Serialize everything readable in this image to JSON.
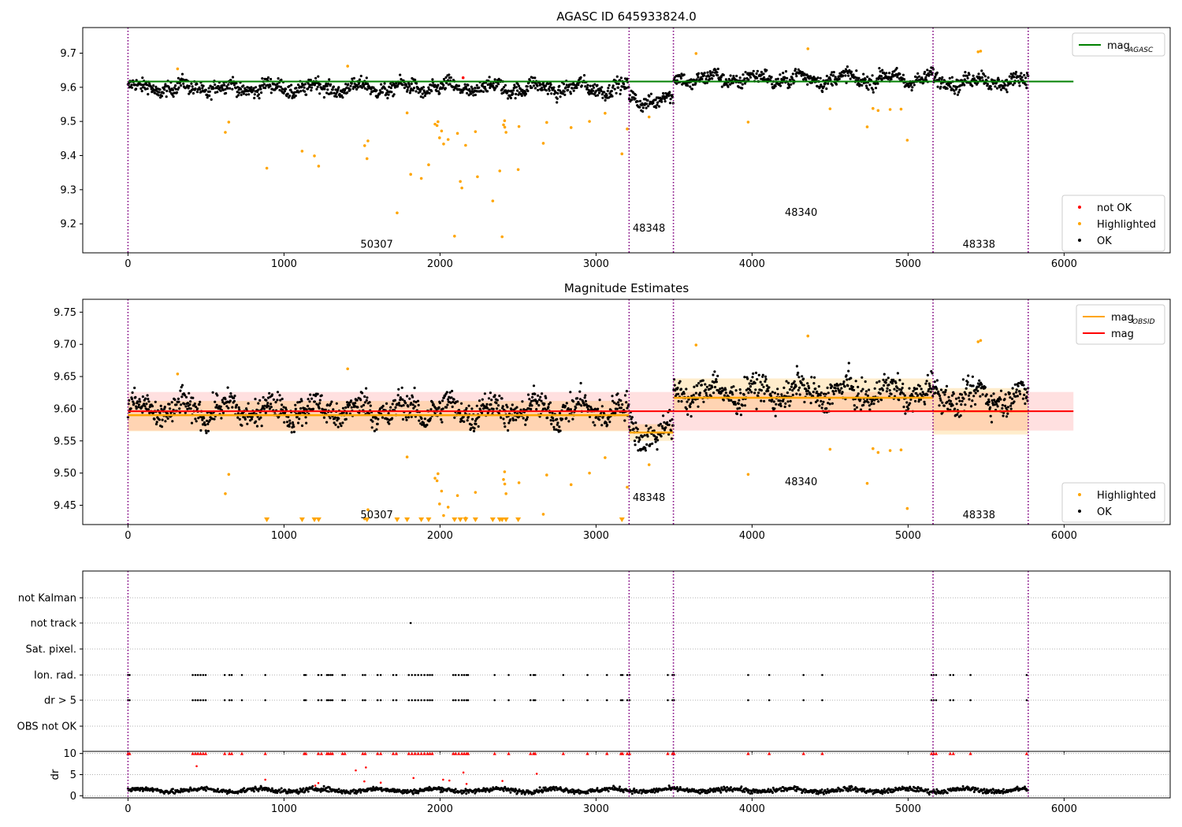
{
  "chart_data": [
    {
      "type": "scatter",
      "title": "AGASC ID 645933824.0",
      "xlim": [
        -290,
        6680
      ],
      "ylim": [
        9.115,
        9.775
      ],
      "x_ticks": [
        0,
        1000,
        2000,
        3000,
        4000,
        5000,
        6000
      ],
      "x_tick_labels": [
        "0",
        "1000",
        "2000",
        "3000",
        "4000",
        "5000",
        "6000"
      ],
      "y_ticks": [
        9.2,
        9.3,
        9.4,
        9.5,
        9.6,
        9.7
      ],
      "y_tick_labels": [
        "9.2",
        "9.3",
        "9.4",
        "9.5",
        "9.6",
        "9.7"
      ],
      "grid": false,
      "obs_boundaries": [
        0,
        3212,
        3496,
        5160,
        5770
      ],
      "obsid_labels": [
        {
          "text": "50307",
          "x": 1490,
          "y": 9.13
        },
        {
          "text": "48348",
          "x": 3235,
          "y": 9.177
        },
        {
          "text": "48340",
          "x": 4210,
          "y": 9.223
        },
        {
          "text": "48338",
          "x": 5350,
          "y": 9.13
        }
      ],
      "mag_agasc": 9.617,
      "mag_agasc_xrange": [
        0,
        6060
      ],
      "legend_top": {
        "position": "upper right",
        "entries": [
          {
            "label": "mag",
            "sub": "AGASC",
            "color": "#008000",
            "kind": "line"
          }
        ]
      },
      "legend_bottom": {
        "position": "lower right",
        "entries": [
          {
            "label": "not OK",
            "color": "#ff0000",
            "kind": "dot"
          },
          {
            "label": "Highlighted",
            "color": "#ffa500",
            "kind": "dot"
          },
          {
            "label": "OK",
            "color": "#000000",
            "kind": "dot"
          }
        ]
      },
      "series": [
        {
          "name": "OK",
          "color": "#000000",
          "obs_means": [
            9.598,
            9.563,
            9.625,
            9.618,
            9.6
          ],
          "spread": 0.025
        },
        {
          "name": "Highlighted",
          "color": "#ffa500",
          "x": [
            318,
            624,
            646,
            890,
            1116,
            1195,
            1222,
            1408,
            1517,
            1532,
            1538,
            1725,
            1789,
            1812,
            1880,
            1927,
            1968,
            1981,
            1987,
            1997,
            2010,
            2023,
            2052,
            2093,
            2112,
            2130,
            2140,
            2164,
            2227,
            2240,
            2338,
            2383,
            2398,
            2407,
            2414,
            2415,
            2423,
            2501,
            2506,
            2662,
            2684,
            2840,
            2958,
            3058,
            3166,
            3200,
            3340,
            3641,
            3975,
            4358,
            4500,
            4738,
            4775,
            4808,
            4885,
            4955,
            4995,
            5449,
            5465
          ],
          "y": [
            9.654,
            9.468,
            9.498,
            9.363,
            9.413,
            9.399,
            9.369,
            9.662,
            9.429,
            9.391,
            9.443,
            9.232,
            9.525,
            9.345,
            9.333,
            9.373,
            9.492,
            9.488,
            9.499,
            9.452,
            9.472,
            9.434,
            9.447,
            9.164,
            9.465,
            9.324,
            9.305,
            9.43,
            9.47,
            9.338,
            9.267,
            9.355,
            9.162,
            9.49,
            9.502,
            9.483,
            9.468,
            9.359,
            9.485,
            9.436,
            9.497,
            9.482,
            9.5,
            9.524,
            9.405,
            9.478,
            9.513,
            9.699,
            9.498,
            9.713,
            9.537,
            9.484,
            9.538,
            9.532,
            9.535,
            9.536,
            9.445,
            9.704,
            9.706
          ]
        },
        {
          "name": "not OK",
          "color": "#ff0000",
          "x": [
            2148
          ],
          "y": [
            9.628
          ]
        }
      ]
    },
    {
      "type": "scatter",
      "title": "Magnitude Estimates",
      "xlim": [
        -290,
        6680
      ],
      "ylim": [
        9.42,
        9.77
      ],
      "x_ticks": [
        0,
        1000,
        2000,
        3000,
        4000,
        5000,
        6000
      ],
      "x_tick_labels": [
        "0",
        "1000",
        "2000",
        "3000",
        "4000",
        "5000",
        "6000"
      ],
      "y_ticks": [
        9.45,
        9.5,
        9.55,
        9.6,
        9.65,
        9.7,
        9.75
      ],
      "y_tick_labels": [
        "9.45",
        "9.50",
        "9.55",
        "9.60",
        "9.65",
        "9.70",
        "9.75"
      ],
      "grid": false,
      "obs_boundaries": [
        0,
        3212,
        3496,
        5160,
        5770
      ],
      "obsid_labels": [
        {
          "text": "50307",
          "x": 1490,
          "y": 9.43
        },
        {
          "text": "48348",
          "x": 3235,
          "y": 9.457
        },
        {
          "text": "48340",
          "x": 4210,
          "y": 9.481
        },
        {
          "text": "48338",
          "x": 5350,
          "y": 9.43
        }
      ],
      "mag": 9.596,
      "mag_band": [
        9.566,
        9.626
      ],
      "mag_xrange": [
        0,
        6060
      ],
      "mag_obsid": [
        {
          "x": [
            0,
            3212
          ],
          "value": 9.59,
          "band": [
            9.565,
            9.612
          ]
        },
        {
          "x": [
            3212,
            3496
          ],
          "value": 9.563,
          "band": [
            9.55,
            9.576
          ]
        },
        {
          "x": [
            3496,
            5160
          ],
          "value": 9.617,
          "band": [
            9.597,
            9.647
          ]
        },
        {
          "x": [
            5160,
            5770
          ],
          "value": 9.596,
          "band": [
            9.56,
            9.632
          ]
        }
      ],
      "legend_top": {
        "position": "upper right",
        "entries": [
          {
            "label": "mag",
            "sub": "OBSID",
            "color": "#ffa500",
            "kind": "line"
          },
          {
            "label": "mag",
            "sub": "",
            "color": "#ff0000",
            "kind": "line"
          }
        ]
      },
      "legend_bottom": {
        "position": "lower right",
        "entries": [
          {
            "label": "Highlighted",
            "color": "#ffa500",
            "kind": "dot"
          },
          {
            "label": "OK",
            "color": "#000000",
            "kind": "dot"
          }
        ]
      },
      "off_scale_markers_x": [
        890,
        1116,
        1195,
        1222,
        1532,
        1725,
        1789,
        1880,
        1927,
        2093,
        2130,
        2164,
        2227,
        2338,
        2383,
        2398,
        2423,
        2501,
        3166
      ]
    },
    {
      "type": "scatter",
      "title": "",
      "xlim": [
        -290,
        6680
      ],
      "categories": [
        "not Kalman",
        "not track",
        "Sat. pixel.",
        "Ion. rad.",
        "dr > 5",
        "OBS not OK"
      ],
      "grid": "horizontal dotted",
      "obs_boundaries": [
        0,
        3212,
        3496,
        5160,
        5770
      ],
      "flag_points": {
        "not track": [
          1812
        ],
        "Ion. rad.": [
          0,
          10,
          415,
          432,
          448,
          465,
          482,
          498,
          620,
          650,
          665,
          730,
          880,
          1130,
          1140,
          1220,
          1240,
          1275,
          1285,
          1298,
          1310,
          1375,
          1390,
          1505,
          1520,
          1600,
          1620,
          1700,
          1720,
          1800,
          1820,
          1840,
          1860,
          1880,
          1900,
          1920,
          1935,
          1950,
          2085,
          2100,
          2120,
          2140,
          2155,
          2170,
          2180,
          2350,
          2440,
          2580,
          2600,
          2610,
          2790,
          2945,
          3070,
          3160,
          3170,
          3200,
          3215,
          3460,
          3490,
          3500,
          3975,
          4110,
          4330,
          4450,
          5150,
          5165,
          5180,
          5270,
          5290,
          5400,
          5760
        ],
        "dr > 5": [
          0,
          10,
          415,
          432,
          448,
          465,
          482,
          498,
          620,
          650,
          665,
          730,
          880,
          1130,
          1140,
          1220,
          1240,
          1275,
          1285,
          1298,
          1310,
          1375,
          1390,
          1505,
          1520,
          1600,
          1620,
          1700,
          1720,
          1800,
          1820,
          1840,
          1860,
          1880,
          1900,
          1920,
          1935,
          1950,
          2085,
          2100,
          2120,
          2140,
          2155,
          2170,
          2180,
          2350,
          2440,
          2580,
          2600,
          2610,
          2790,
          2945,
          3070,
          3160,
          3170,
          3200,
          3215,
          3460,
          3490,
          3500,
          3975,
          4110,
          4330,
          4450,
          5150,
          5165,
          5180,
          5270,
          5290,
          5400,
          5760
        ]
      }
    },
    {
      "type": "scatter",
      "title": "",
      "xlim": [
        -290,
        6680
      ],
      "ylim": [
        -0.5,
        10.5
      ],
      "x_ticks": [
        0,
        1000,
        2000,
        3000,
        4000,
        5000,
        6000
      ],
      "x_tick_labels": [
        "0",
        "1000",
        "2000",
        "3000",
        "4000",
        "5000",
        "6000"
      ],
      "y_ticks": [
        0,
        5,
        10
      ],
      "y_tick_labels": [
        "0",
        "5",
        "10"
      ],
      "ylabel": "dr",
      "grid": "horizontal dotted",
      "obs_boundaries": [
        0,
        3212,
        3496,
        5160,
        5770
      ],
      "clipped_red_x": [
        0,
        10,
        415,
        432,
        448,
        465,
        482,
        498,
        620,
        650,
        665,
        730,
        880,
        1130,
        1140,
        1220,
        1240,
        1275,
        1285,
        1298,
        1310,
        1375,
        1390,
        1505,
        1520,
        1600,
        1620,
        1700,
        1720,
        1800,
        1820,
        1840,
        1860,
        1880,
        1900,
        1920,
        1935,
        1950,
        2085,
        2100,
        2120,
        2140,
        2155,
        2170,
        2180,
        2350,
        2440,
        2580,
        2600,
        2610,
        2790,
        2945,
        3070,
        3160,
        3170,
        3200,
        3215,
        3460,
        3490,
        3500,
        3975,
        4110,
        4330,
        4450,
        5150,
        5165,
        5180,
        5270,
        5290,
        5400,
        5760
      ],
      "red_points": [
        {
          "x": [
            440,
            880,
            1220,
            1460,
            1515,
            1525,
            1620,
            1830,
            2020,
            2060,
            2150,
            2400,
            2620,
            1200,
            2170
          ],
          "y": [
            7.0,
            3.8,
            3.0,
            6.0,
            3.4,
            6.7,
            3.1,
            4.2,
            3.8,
            3.6,
            5.5,
            3.5,
            5.2,
            2.4,
            2.8
          ]
        }
      ],
      "ok_mean": 1.3
    }
  ]
}
